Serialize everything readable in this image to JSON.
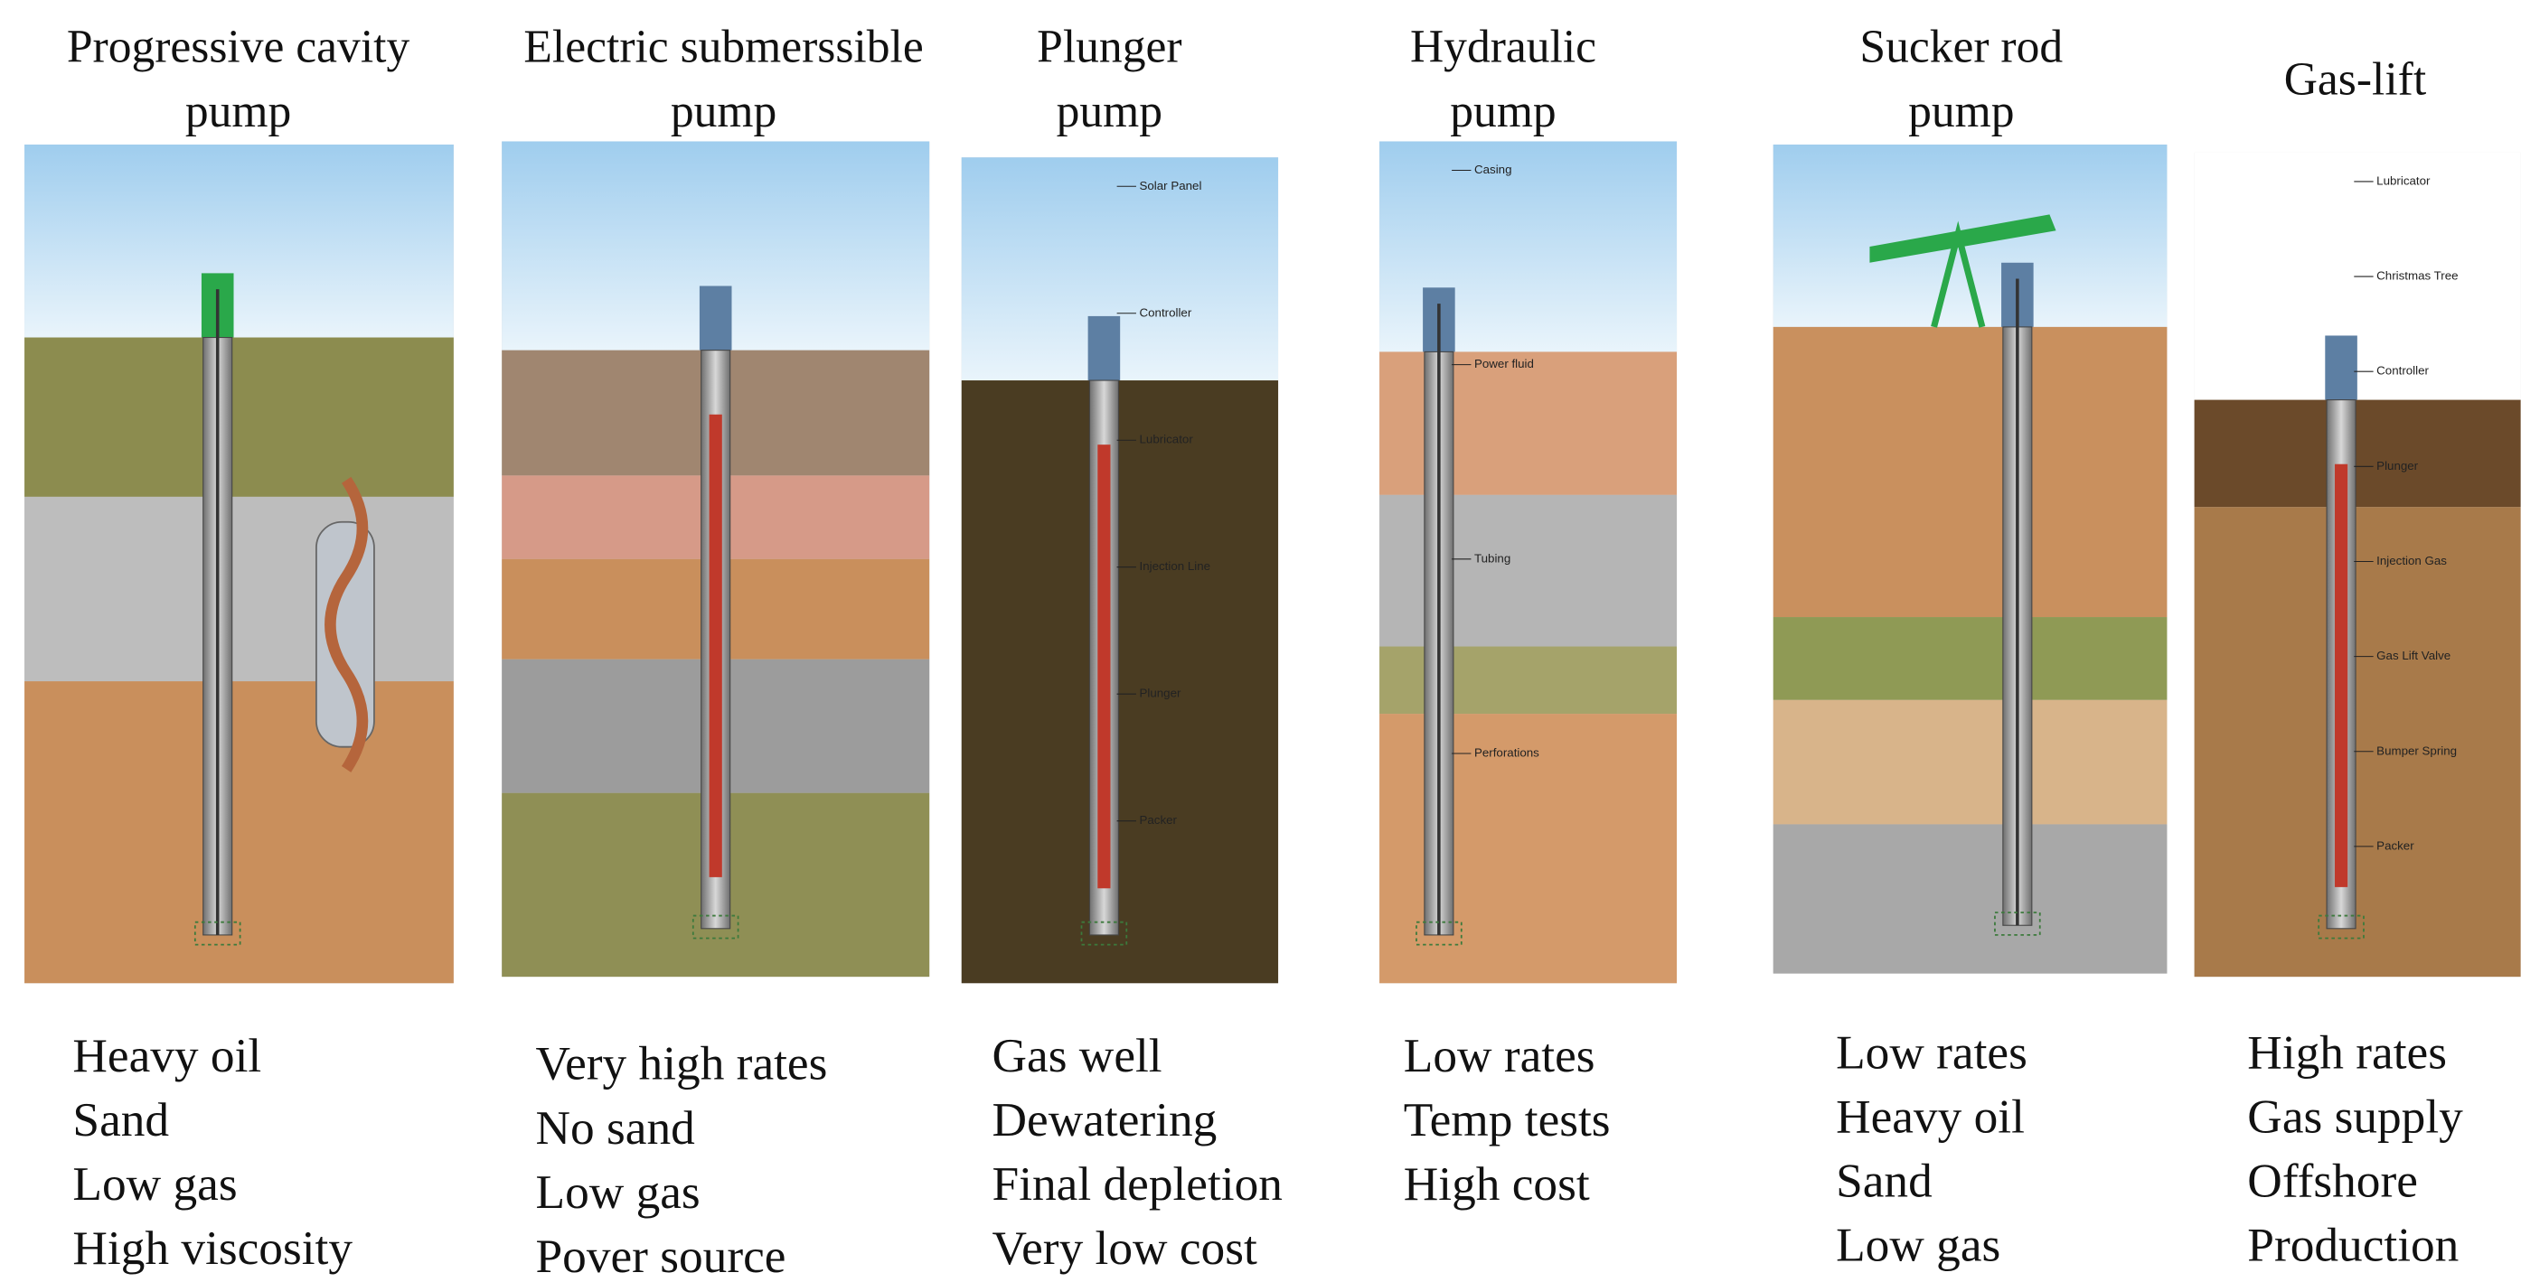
{
  "columns": [
    {
      "title": [
        "Progressive cavity",
        "pump"
      ],
      "properties": [
        "Heavy oil",
        "Sand",
        "Low gas",
        "High viscosity"
      ],
      "labels": []
    },
    {
      "title": [
        "Electric submerssible",
        "pump"
      ],
      "properties": [
        "Very high rates",
        "No sand",
        "Low gas",
        "Pover source"
      ],
      "labels": []
    },
    {
      "title": [
        "Plunger",
        "pump"
      ],
      "properties": [
        "Gas well",
        "Dewatering",
        "Final depletion",
        "Very low cost"
      ],
      "labels": [
        "Solar Panel",
        "Controller",
        "Lubricator",
        "Injection Line",
        "Plunger",
        "Packer"
      ]
    },
    {
      "title": [
        "Hydraulic",
        "pump"
      ],
      "properties": [
        "Low rates",
        "Temp tests",
        "High cost"
      ],
      "labels": [
        "Casing",
        "Power fluid",
        "Tubing",
        "Perforations"
      ]
    },
    {
      "title": [
        "Sucker rod",
        "pump"
      ],
      "properties": [
        "Low rates",
        "Heavy oil",
        "Sand",
        "Low gas"
      ],
      "labels": []
    },
    {
      "title": [
        "Gas-lift"
      ],
      "properties": [
        "High rates",
        "Gas supply",
        "Offshore",
        "Production"
      ],
      "labels": [
        "Lubricator",
        "Christmas Tree",
        "Controller",
        "Plunger",
        "Injection Gas",
        "Gas Lift Valve",
        "Bumper Spring",
        "Packer"
      ]
    }
  ]
}
